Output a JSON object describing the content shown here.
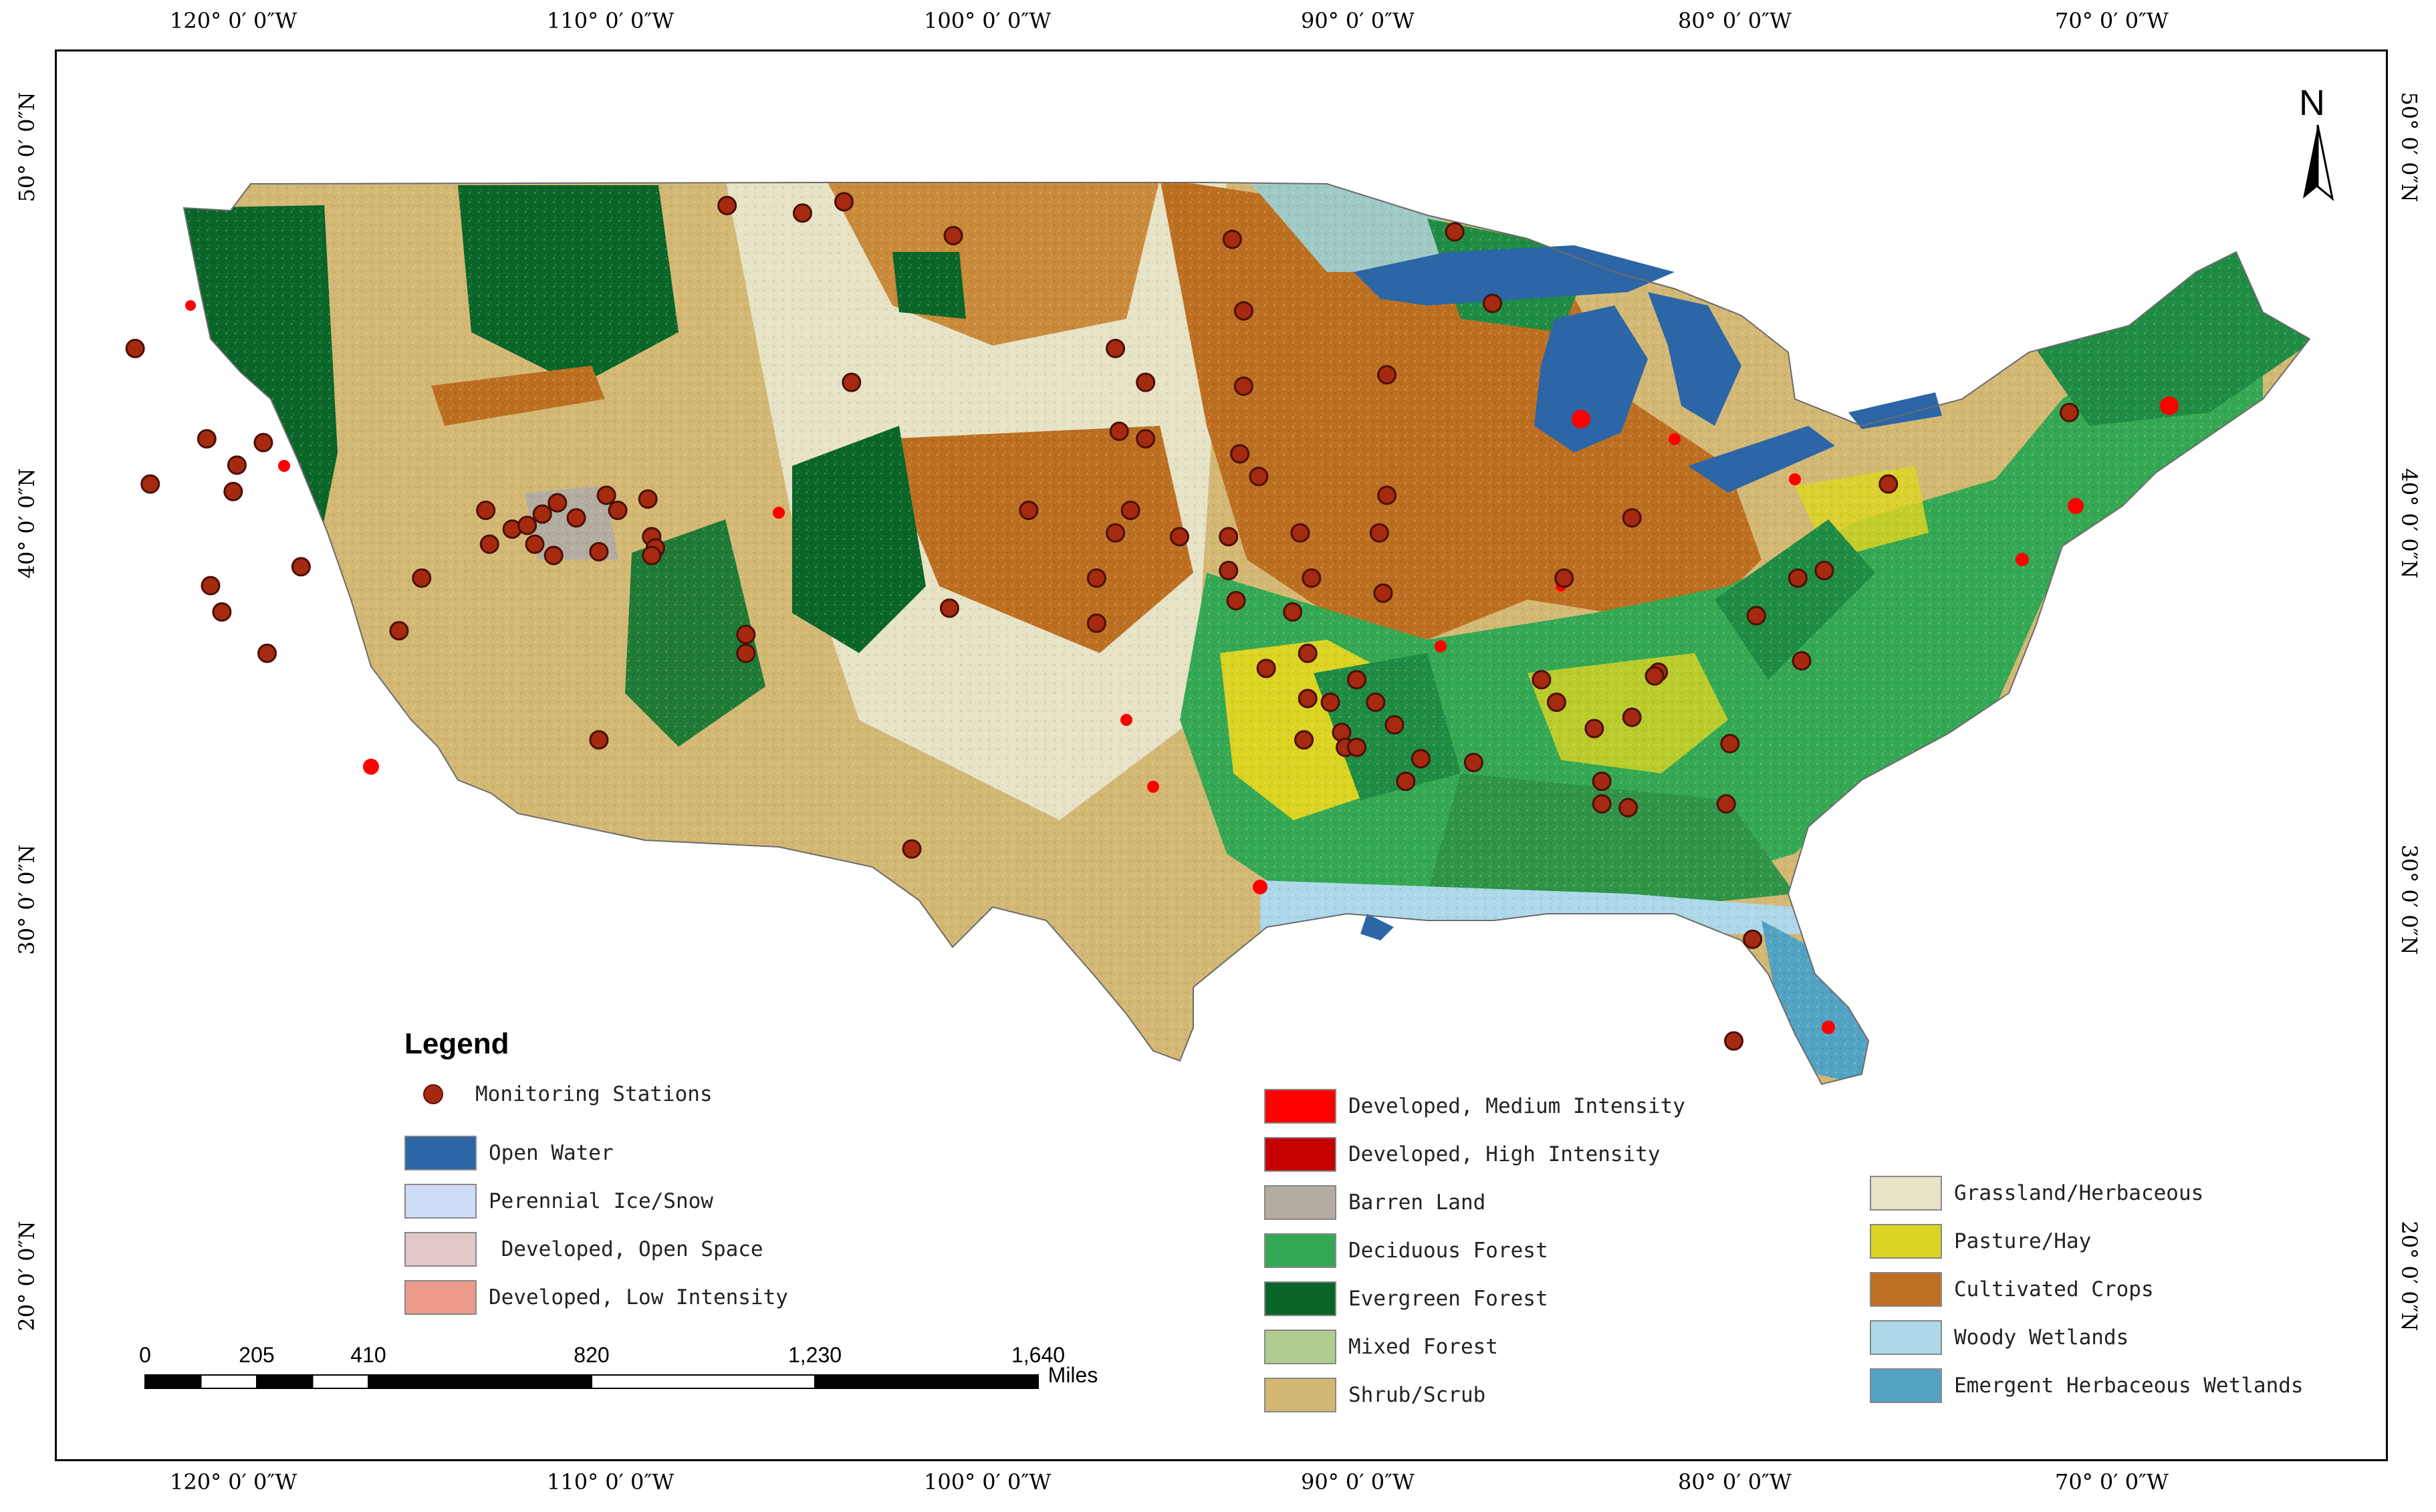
{
  "map": {
    "north_label": "N",
    "lon_labels": [
      "120° 0′ 0″W",
      "110° 0′ 0″W",
      "100° 0′ 0″W",
      "90° 0′ 0″W",
      "80° 0′ 0″W",
      "70° 0′ 0″W"
    ],
    "lat_labels": [
      "50° 0′ 0″N",
      "40° 0′ 0″N",
      "30° 0′ 0″N",
      "20° 0′ 0″N"
    ]
  },
  "legend": {
    "title": "Legend",
    "station_label": "Monitoring Stations",
    "station_color": "#a52a10",
    "classes": [
      {
        "label": "Open Water",
        "color": "#2c66a6"
      },
      {
        "label": "Perennial Ice/Snow",
        "color": "#cfdcf6"
      },
      {
        "label": " Developed, Open Space",
        "color": "#e2c8c8"
      },
      {
        "label": "Developed, Low Intensity",
        "color": "#eb9a8a"
      },
      {
        "label": "Developed, Medium Intensity",
        "color": "#ff0000"
      },
      {
        "label": "Developed, High Intensity",
        "color": "#c40000"
      },
      {
        "label": "Barren Land",
        "color": "#b3aca0"
      },
      {
        "label": "Deciduous Forest",
        "color": "#34a853"
      },
      {
        "label": "Evergreen Forest",
        "color": "#0a6528"
      },
      {
        "label": "Mixed Forest",
        "color": "#b0cb8f"
      },
      {
        "label": "Shrub/Scrub",
        "color": "#d3b874"
      },
      {
        "label": "Grassland/Herbaceous",
        "color": "#e6e3c6"
      },
      {
        "label": "Pasture/Hay",
        "color": "#dcd422"
      },
      {
        "label": "Cultivated Crops",
        "color": "#bd6f21"
      },
      {
        "label": "Woody Wetlands",
        "color": "#add8ea"
      },
      {
        "label": "Emergent Herbaceous Wetlands",
        "color": "#52a3c3"
      }
    ]
  },
  "scale_bar": {
    "ticks": [
      "0",
      "205",
      "410",
      "820",
      "1,230",
      "1,640"
    ],
    "tick_values": [
      0,
      205,
      410,
      820,
      1230,
      1640
    ],
    "unit": "Miles"
  },
  "stations": [
    [
      -123.1,
      44.7
    ],
    [
      -121.2,
      42.3
    ],
    [
      -120.4,
      41.6
    ],
    [
      -122.7,
      41.1
    ],
    [
      -120.5,
      40.9
    ],
    [
      -119.7,
      42.2
    ],
    [
      -121.1,
      38.4
    ],
    [
      -120.8,
      37.7
    ],
    [
      -118.7,
      38.9
    ],
    [
      -119.6,
      36.6
    ],
    [
      -115.5,
      38.6
    ],
    [
      -116.1,
      37.2
    ],
    [
      -113.8,
      40.4
    ],
    [
      -113.1,
      39.9
    ],
    [
      -112.7,
      40.0
    ],
    [
      -112.3,
      40.3
    ],
    [
      -111.9,
      40.6
    ],
    [
      -111.4,
      40.2
    ],
    [
      -113.7,
      39.5
    ],
    [
      -112.5,
      39.5
    ],
    [
      -112.0,
      39.2
    ],
    [
      -110.6,
      40.8
    ],
    [
      -110.3,
      40.4
    ],
    [
      -109.5,
      40.7
    ],
    [
      -109.4,
      39.7
    ],
    [
      -109.3,
      39.4
    ],
    [
      -109.4,
      39.2
    ],
    [
      -110.8,
      39.3
    ],
    [
      -106.9,
      37.1
    ],
    [
      -106.9,
      36.6
    ],
    [
      -110.8,
      34.3
    ],
    [
      -107.4,
      48.5
    ],
    [
      -105.4,
      48.3
    ],
    [
      -104.3,
      48.6
    ],
    [
      -101.4,
      47.7
    ],
    [
      -104.1,
      43.8
    ],
    [
      -101.5,
      37.8
    ],
    [
      -99.4,
      40.4
    ],
    [
      -97.6,
      38.6
    ],
    [
      -97.6,
      37.4
    ],
    [
      -97.1,
      44.7
    ],
    [
      -96.3,
      43.8
    ],
    [
      -97.0,
      42.5
    ],
    [
      -96.7,
      40.4
    ],
    [
      -97.1,
      39.8
    ],
    [
      -95.4,
      39.7
    ],
    [
      -94.0,
      47.6
    ],
    [
      -93.7,
      43.7
    ],
    [
      -93.8,
      41.9
    ],
    [
      -93.3,
      41.3
    ],
    [
      -94.1,
      39.7
    ],
    [
      -94.1,
      38.8
    ],
    [
      -93.9,
      38.0
    ],
    [
      -92.2,
      39.8
    ],
    [
      -91.9,
      38.6
    ],
    [
      -92.4,
      37.7
    ],
    [
      -92.0,
      36.6
    ],
    [
      -93.1,
      36.2
    ],
    [
      -92.0,
      35.4
    ],
    [
      -91.4,
      35.3
    ],
    [
      -92.1,
      34.3
    ],
    [
      -91.1,
      34.5
    ],
    [
      -91.0,
      34.1
    ],
    [
      -90.7,
      34.1
    ],
    [
      -90.2,
      35.3
    ],
    [
      -90.7,
      35.9
    ],
    [
      -89.7,
      34.7
    ],
    [
      -89.0,
      33.8
    ],
    [
      -89.4,
      33.2
    ],
    [
      -87.6,
      33.7
    ],
    [
      -90.0,
      38.2
    ],
    [
      -90.1,
      39.8
    ],
    [
      -89.9,
      40.8
    ],
    [
      -89.9,
      44.0
    ],
    [
      -88.1,
      47.8
    ],
    [
      -87.1,
      45.9
    ],
    [
      -85.8,
      35.9
    ],
    [
      -85.4,
      35.3
    ],
    [
      -85.2,
      38.6
    ],
    [
      -84.4,
      34.6
    ],
    [
      -83.4,
      34.9
    ],
    [
      -84.2,
      33.2
    ],
    [
      -84.2,
      32.6
    ],
    [
      -83.5,
      32.5
    ],
    [
      -83.4,
      40.2
    ],
    [
      -82.7,
      36.1
    ],
    [
      -82.8,
      36.0
    ],
    [
      -80.8,
      34.2
    ],
    [
      -80.9,
      32.6
    ],
    [
      -80.2,
      29.0
    ],
    [
      -80.7,
      26.3
    ],
    [
      -80.1,
      37.6
    ],
    [
      -78.9,
      36.4
    ],
    [
      -79.0,
      38.6
    ],
    [
      -78.3,
      38.8
    ],
    [
      -76.6,
      41.1
    ],
    [
      -71.8,
      43.0
    ],
    [
      -96.3,
      42.3
    ],
    [
      -93.7,
      45.7
    ],
    [
      -102.5,
      31.4
    ]
  ]
}
